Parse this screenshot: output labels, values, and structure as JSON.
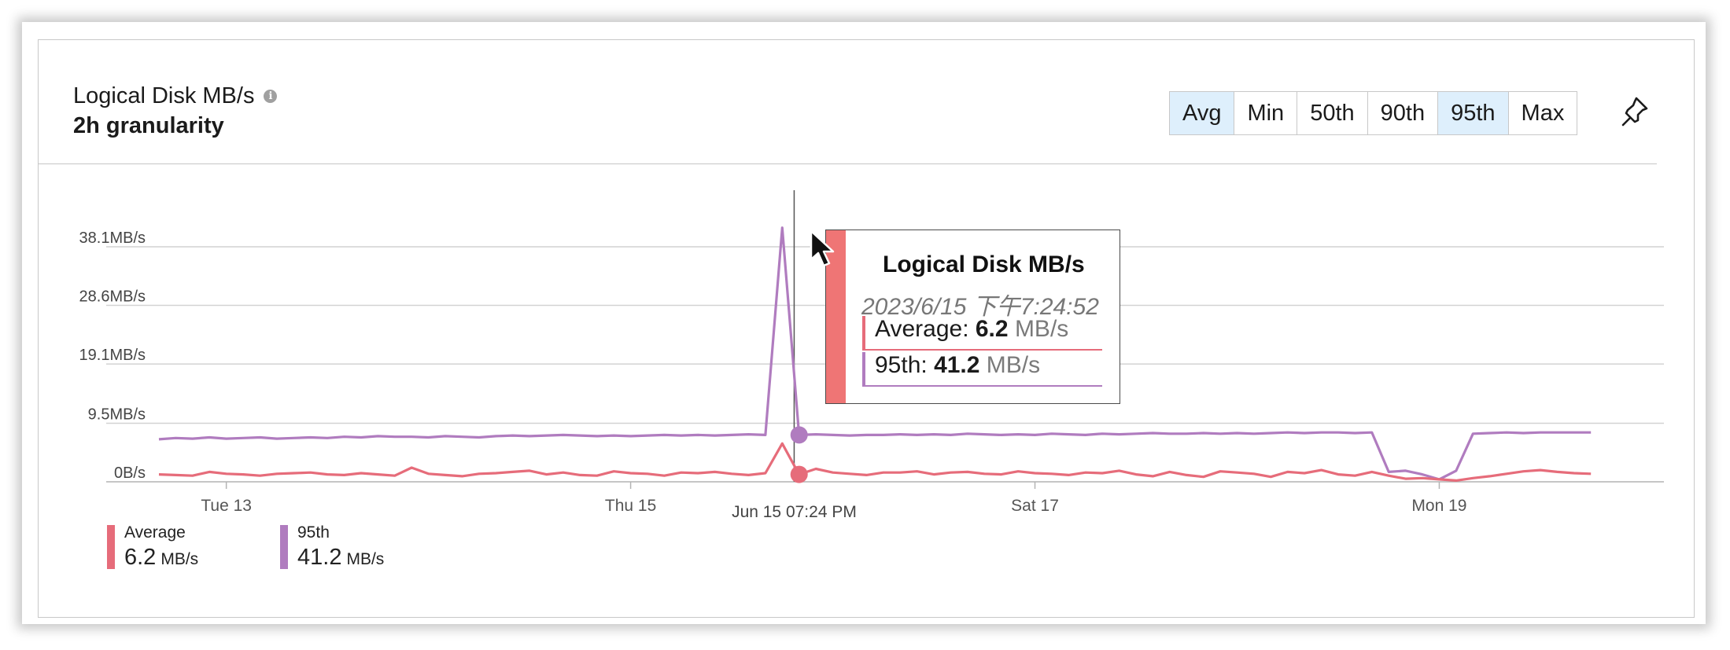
{
  "title": "Logical Disk MB/s",
  "subtitle": "2h granularity",
  "aggregations": [
    {
      "label": "Avg",
      "active": true
    },
    {
      "label": "Min",
      "active": false
    },
    {
      "label": "50th",
      "active": false
    },
    {
      "label": "90th",
      "active": false
    },
    {
      "label": "95th",
      "active": true
    },
    {
      "label": "Max",
      "active": false
    }
  ],
  "icons": {
    "info": "info-icon",
    "pin": "pin-icon",
    "cursor": "cursor-arrow-icon"
  },
  "colors": {
    "average": "#e66c7a",
    "p95": "#b07cbf",
    "active_button": "#deeffc",
    "tooltip_bar": "#ef7575"
  },
  "tooltip": {
    "title": "Logical Disk MB/s",
    "datetime": "2023/6/15 下午7:24:52",
    "rows": [
      {
        "label": "Average: ",
        "value": "6.2",
        "unit": "MB/s"
      },
      {
        "label": "95th: ",
        "value": "41.2",
        "unit": "MB/s"
      }
    ]
  },
  "legend": [
    {
      "name": "Average",
      "value": "6.2",
      "unit": "MB/s"
    },
    {
      "name": "95th",
      "value": "41.2",
      "unit": "MB/s"
    }
  ],
  "chart_data": {
    "type": "line",
    "title": "Logical Disk MB/s",
    "subtitle": "2h granularity",
    "ylim": [
      0,
      41.2
    ],
    "y_ticks": [
      {
        "value": 0,
        "label": "0B/s"
      },
      {
        "value": 9.5,
        "label": "9.5MB/s"
      },
      {
        "value": 19.1,
        "label": "19.1MB/s"
      },
      {
        "value": 28.6,
        "label": "28.6MB/s"
      },
      {
        "value": 38.1,
        "label": "38.1MB/s"
      }
    ],
    "x_start": "2023-06-12T16:00:00",
    "x_end": "2023-06-19T22:00:00",
    "x_ticks": [
      {
        "value": "2023-06-13T00:00:00",
        "label": "Tue 13"
      },
      {
        "value": "2023-06-15T00:00:00",
        "label": "Thu 15"
      },
      {
        "value": "2023-06-17T00:00:00",
        "label": "Sat 17"
      },
      {
        "value": "2023-06-19T00:00:00",
        "label": "Mon 19"
      }
    ],
    "crosshair": {
      "x": "2023-06-15T19:24:52",
      "label": "Jun 15 07:24 PM"
    },
    "grid": true,
    "legend_position": "bottom-left",
    "series": [
      {
        "name": "Average",
        "color": "#e66c7a",
        "points": [
          [
            "2023-06-12T16:00:00",
            1.2
          ],
          [
            "2023-06-12T18:00:00",
            1.1
          ],
          [
            "2023-06-12T20:00:00",
            1.0
          ],
          [
            "2023-06-12T22:00:00",
            1.6
          ],
          [
            "2023-06-13T00:00:00",
            1.3
          ],
          [
            "2023-06-13T02:00:00",
            1.2
          ],
          [
            "2023-06-13T04:00:00",
            1.0
          ],
          [
            "2023-06-13T06:00:00",
            1.3
          ],
          [
            "2023-06-13T08:00:00",
            1.4
          ],
          [
            "2023-06-13T10:00:00",
            1.5
          ],
          [
            "2023-06-13T12:00:00",
            1.2
          ],
          [
            "2023-06-13T14:00:00",
            1.1
          ],
          [
            "2023-06-13T16:00:00",
            1.4
          ],
          [
            "2023-06-13T18:00:00",
            1.2
          ],
          [
            "2023-06-13T20:00:00",
            1.0
          ],
          [
            "2023-06-13T22:00:00",
            2.3
          ],
          [
            "2023-06-14T00:00:00",
            1.3
          ],
          [
            "2023-06-14T02:00:00",
            1.1
          ],
          [
            "2023-06-14T04:00:00",
            0.9
          ],
          [
            "2023-06-14T06:00:00",
            1.3
          ],
          [
            "2023-06-14T08:00:00",
            1.4
          ],
          [
            "2023-06-14T10:00:00",
            1.6
          ],
          [
            "2023-06-14T12:00:00",
            1.8
          ],
          [
            "2023-06-14T14:00:00",
            1.2
          ],
          [
            "2023-06-14T16:00:00",
            1.5
          ],
          [
            "2023-06-14T18:00:00",
            1.1
          ],
          [
            "2023-06-14T20:00:00",
            1.0
          ],
          [
            "2023-06-14T22:00:00",
            1.7
          ],
          [
            "2023-06-15T00:00:00",
            1.4
          ],
          [
            "2023-06-15T02:00:00",
            1.3
          ],
          [
            "2023-06-15T04:00:00",
            1.0
          ],
          [
            "2023-06-15T06:00:00",
            1.5
          ],
          [
            "2023-06-15T08:00:00",
            1.4
          ],
          [
            "2023-06-15T10:00:00",
            1.6
          ],
          [
            "2023-06-15T12:00:00",
            1.3
          ],
          [
            "2023-06-15T14:00:00",
            1.1
          ],
          [
            "2023-06-15T16:00:00",
            1.4
          ],
          [
            "2023-06-15T18:00:00",
            6.2
          ],
          [
            "2023-06-15T20:00:00",
            1.2
          ],
          [
            "2023-06-15T22:00:00",
            2.1
          ],
          [
            "2023-06-16T00:00:00",
            1.5
          ],
          [
            "2023-06-16T02:00:00",
            1.3
          ],
          [
            "2023-06-16T04:00:00",
            1.1
          ],
          [
            "2023-06-16T06:00:00",
            1.5
          ],
          [
            "2023-06-16T08:00:00",
            1.5
          ],
          [
            "2023-06-16T10:00:00",
            1.7
          ],
          [
            "2023-06-16T12:00:00",
            1.2
          ],
          [
            "2023-06-16T14:00:00",
            1.5
          ],
          [
            "2023-06-16T16:00:00",
            1.6
          ],
          [
            "2023-06-16T18:00:00",
            1.3
          ],
          [
            "2023-06-16T20:00:00",
            1.2
          ],
          [
            "2023-06-16T22:00:00",
            1.7
          ],
          [
            "2023-06-17T00:00:00",
            1.4
          ],
          [
            "2023-06-17T02:00:00",
            1.3
          ],
          [
            "2023-06-17T04:00:00",
            1.1
          ],
          [
            "2023-06-17T06:00:00",
            1.5
          ],
          [
            "2023-06-17T08:00:00",
            1.4
          ],
          [
            "2023-06-17T10:00:00",
            1.8
          ],
          [
            "2023-06-17T12:00:00",
            1.2
          ],
          [
            "2023-06-17T14:00:00",
            0.9
          ],
          [
            "2023-06-17T16:00:00",
            1.6
          ],
          [
            "2023-06-17T18:00:00",
            1.1
          ],
          [
            "2023-06-17T20:00:00",
            0.8
          ],
          [
            "2023-06-17T22:00:00",
            1.7
          ],
          [
            "2023-06-18T00:00:00",
            1.5
          ],
          [
            "2023-06-18T02:00:00",
            1.3
          ],
          [
            "2023-06-18T04:00:00",
            0.8
          ],
          [
            "2023-06-18T06:00:00",
            1.6
          ],
          [
            "2023-06-18T08:00:00",
            1.4
          ],
          [
            "2023-06-18T10:00:00",
            1.9
          ],
          [
            "2023-06-18T12:00:00",
            1.2
          ],
          [
            "2023-06-18T14:00:00",
            1.0
          ],
          [
            "2023-06-18T16:00:00",
            1.6
          ],
          [
            "2023-06-18T18:00:00",
            1.0
          ],
          [
            "2023-06-18T20:00:00",
            0.5
          ],
          [
            "2023-06-18T22:00:00",
            0.6
          ],
          [
            "2023-06-19T00:00:00",
            0.4
          ],
          [
            "2023-06-19T02:00:00",
            0.2
          ],
          [
            "2023-06-19T04:00:00",
            0.6
          ],
          [
            "2023-06-19T06:00:00",
            0.9
          ],
          [
            "2023-06-19T08:00:00",
            1.3
          ],
          [
            "2023-06-19T10:00:00",
            1.7
          ],
          [
            "2023-06-19T12:00:00",
            1.9
          ],
          [
            "2023-06-19T14:00:00",
            1.6
          ],
          [
            "2023-06-19T16:00:00",
            1.4
          ],
          [
            "2023-06-19T18:00:00",
            1.3
          ]
        ]
      },
      {
        "name": "95th",
        "color": "#b07cbf",
        "points": [
          [
            "2023-06-12T16:00:00",
            6.9
          ],
          [
            "2023-06-12T18:00:00",
            7.1
          ],
          [
            "2023-06-12T20:00:00",
            7.0
          ],
          [
            "2023-06-12T22:00:00",
            7.2
          ],
          [
            "2023-06-13T00:00:00",
            7.0
          ],
          [
            "2023-06-13T02:00:00",
            7.1
          ],
          [
            "2023-06-13T04:00:00",
            7.2
          ],
          [
            "2023-06-13T06:00:00",
            7.0
          ],
          [
            "2023-06-13T08:00:00",
            7.1
          ],
          [
            "2023-06-13T10:00:00",
            7.2
          ],
          [
            "2023-06-13T12:00:00",
            7.1
          ],
          [
            "2023-06-13T14:00:00",
            7.3
          ],
          [
            "2023-06-13T16:00:00",
            7.2
          ],
          [
            "2023-06-13T18:00:00",
            7.4
          ],
          [
            "2023-06-13T20:00:00",
            7.3
          ],
          [
            "2023-06-13T22:00:00",
            7.3
          ],
          [
            "2023-06-14T00:00:00",
            7.2
          ],
          [
            "2023-06-14T02:00:00",
            7.4
          ],
          [
            "2023-06-14T04:00:00",
            7.3
          ],
          [
            "2023-06-14T06:00:00",
            7.2
          ],
          [
            "2023-06-14T08:00:00",
            7.4
          ],
          [
            "2023-06-14T10:00:00",
            7.5
          ],
          [
            "2023-06-14T12:00:00",
            7.4
          ],
          [
            "2023-06-14T14:00:00",
            7.5
          ],
          [
            "2023-06-14T16:00:00",
            7.6
          ],
          [
            "2023-06-14T18:00:00",
            7.5
          ],
          [
            "2023-06-14T20:00:00",
            7.4
          ],
          [
            "2023-06-14T22:00:00",
            7.5
          ],
          [
            "2023-06-15T00:00:00",
            7.4
          ],
          [
            "2023-06-15T02:00:00",
            7.5
          ],
          [
            "2023-06-15T04:00:00",
            7.6
          ],
          [
            "2023-06-15T06:00:00",
            7.5
          ],
          [
            "2023-06-15T08:00:00",
            7.6
          ],
          [
            "2023-06-15T10:00:00",
            7.5
          ],
          [
            "2023-06-15T12:00:00",
            7.6
          ],
          [
            "2023-06-15T14:00:00",
            7.7
          ],
          [
            "2023-06-15T16:00:00",
            7.6
          ],
          [
            "2023-06-15T18:00:00",
            41.2
          ],
          [
            "2023-06-15T20:00:00",
            7.6
          ],
          [
            "2023-06-15T22:00:00",
            7.7
          ],
          [
            "2023-06-16T00:00:00",
            7.6
          ],
          [
            "2023-06-16T02:00:00",
            7.5
          ],
          [
            "2023-06-16T04:00:00",
            7.6
          ],
          [
            "2023-06-16T06:00:00",
            7.6
          ],
          [
            "2023-06-16T08:00:00",
            7.7
          ],
          [
            "2023-06-16T10:00:00",
            7.6
          ],
          [
            "2023-06-16T12:00:00",
            7.7
          ],
          [
            "2023-06-16T14:00:00",
            7.6
          ],
          [
            "2023-06-16T16:00:00",
            7.8
          ],
          [
            "2023-06-16T18:00:00",
            7.7
          ],
          [
            "2023-06-16T20:00:00",
            7.6
          ],
          [
            "2023-06-16T22:00:00",
            7.7
          ],
          [
            "2023-06-17T00:00:00",
            7.6
          ],
          [
            "2023-06-17T02:00:00",
            7.8
          ],
          [
            "2023-06-17T04:00:00",
            7.7
          ],
          [
            "2023-06-17T06:00:00",
            7.6
          ],
          [
            "2023-06-17T08:00:00",
            7.8
          ],
          [
            "2023-06-17T10:00:00",
            7.7
          ],
          [
            "2023-06-17T12:00:00",
            7.8
          ],
          [
            "2023-06-17T14:00:00",
            7.9
          ],
          [
            "2023-06-17T16:00:00",
            7.8
          ],
          [
            "2023-06-17T18:00:00",
            7.8
          ],
          [
            "2023-06-17T20:00:00",
            7.9
          ],
          [
            "2023-06-17T22:00:00",
            7.8
          ],
          [
            "2023-06-18T00:00:00",
            7.9
          ],
          [
            "2023-06-18T02:00:00",
            7.8
          ],
          [
            "2023-06-18T04:00:00",
            7.9
          ],
          [
            "2023-06-18T06:00:00",
            8.0
          ],
          [
            "2023-06-18T08:00:00",
            7.9
          ],
          [
            "2023-06-18T10:00:00",
            8.0
          ],
          [
            "2023-06-18T12:00:00",
            8.0
          ],
          [
            "2023-06-18T14:00:00",
            7.9
          ],
          [
            "2023-06-18T16:00:00",
            8.0
          ],
          [
            "2023-06-18T18:00:00",
            1.6
          ],
          [
            "2023-06-18T20:00:00",
            1.8
          ],
          [
            "2023-06-18T22:00:00",
            1.2
          ],
          [
            "2023-06-19T00:00:00",
            0.4
          ],
          [
            "2023-06-19T02:00:00",
            1.8
          ],
          [
            "2023-06-19T04:00:00",
            7.8
          ],
          [
            "2023-06-19T06:00:00",
            7.9
          ],
          [
            "2023-06-19T08:00:00",
            8.0
          ],
          [
            "2023-06-19T10:00:00",
            7.9
          ],
          [
            "2023-06-19T12:00:00",
            8.0
          ],
          [
            "2023-06-19T14:00:00",
            8.0
          ],
          [
            "2023-06-19T16:00:00",
            8.0
          ],
          [
            "2023-06-19T18:00:00",
            8.0
          ]
        ]
      }
    ]
  }
}
